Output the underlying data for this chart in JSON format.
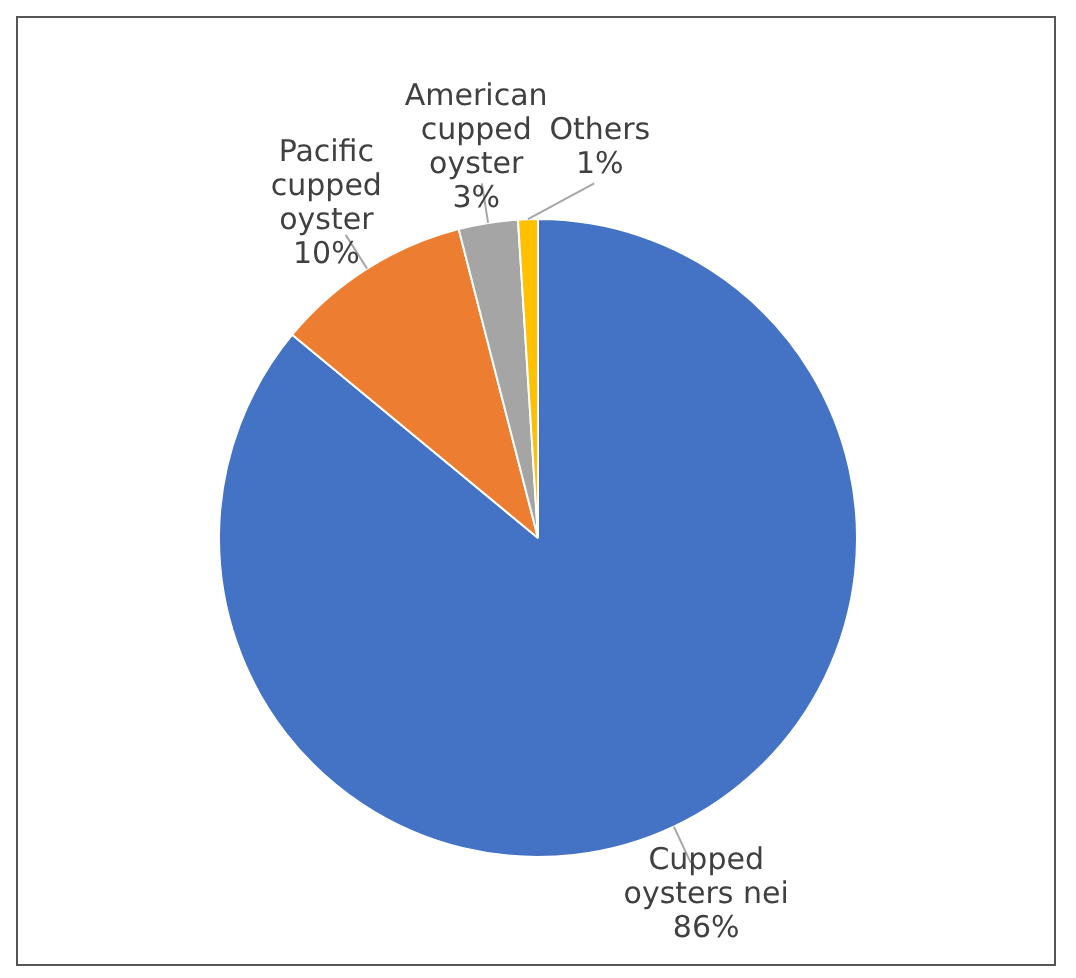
{
  "chart_data": {
    "type": "pie",
    "categories": [
      "Cupped oysters nei",
      "Pacific cupped oyster",
      "American cupped oyster",
      "Others"
    ],
    "values": [
      86,
      10,
      3,
      1
    ],
    "colors": [
      "#4472c4",
      "#ed7d31",
      "#a5a5a5",
      "#ffc000"
    ],
    "value_labels": [
      "86%",
      "10%",
      "3%",
      "1%"
    ],
    "legend": false
  }
}
